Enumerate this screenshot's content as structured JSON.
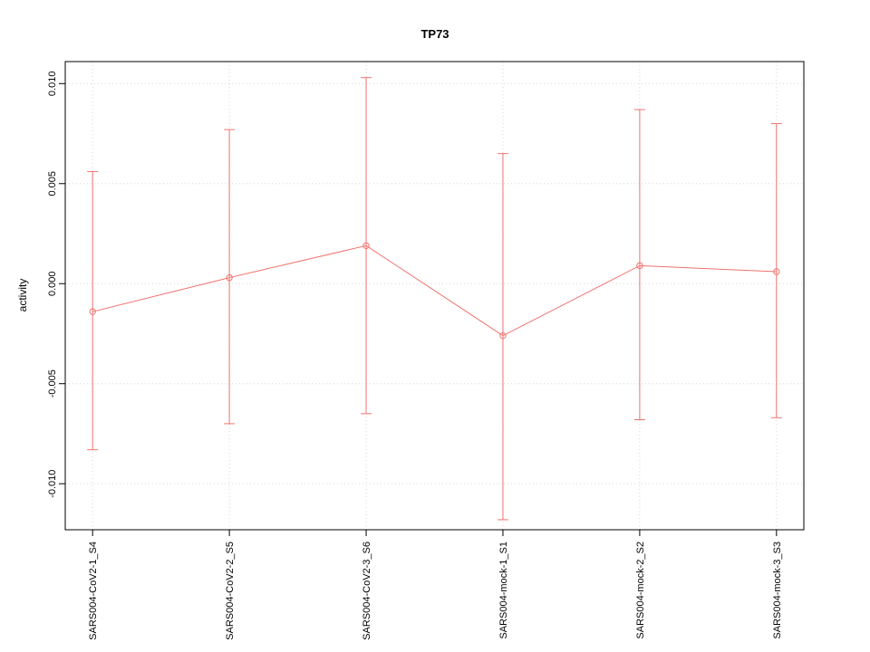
{
  "chart_data": {
    "type": "line",
    "title": "TP73",
    "xlabel": "",
    "ylabel": "activity",
    "categories": [
      "SARS004-CoV2-1_S4",
      "SARS004-CoV2-2_S5",
      "SARS004-CoV2-3_S6",
      "SARS004-mock-1_S1",
      "SARS004-mock-2_S2",
      "SARS004-mock-3_S3"
    ],
    "series": [
      {
        "name": "activity",
        "color": "#f0736e",
        "values": [
          -0.0014,
          0.0003,
          0.0019,
          -0.0026,
          0.0009,
          0.0006
        ],
        "error_low": [
          -0.0083,
          -0.007,
          -0.0065,
          -0.0118,
          -0.0068,
          -0.0067
        ],
        "error_high": [
          0.0056,
          0.0077,
          0.0103,
          0.0065,
          0.0087,
          0.008
        ]
      }
    ],
    "ylim": [
      -0.0123,
      0.0111
    ],
    "yticks": [
      -0.01,
      -0.005,
      0.0,
      0.005,
      0.01
    ],
    "ytick_labels": [
      "-0.010",
      "-0.005",
      "0.000",
      "0.005",
      "0.010"
    ],
    "grid": true,
    "grid_color": "#d6d6d6",
    "axis_color": "#000000",
    "point_style": "open-circle",
    "legend_position": "none"
  }
}
